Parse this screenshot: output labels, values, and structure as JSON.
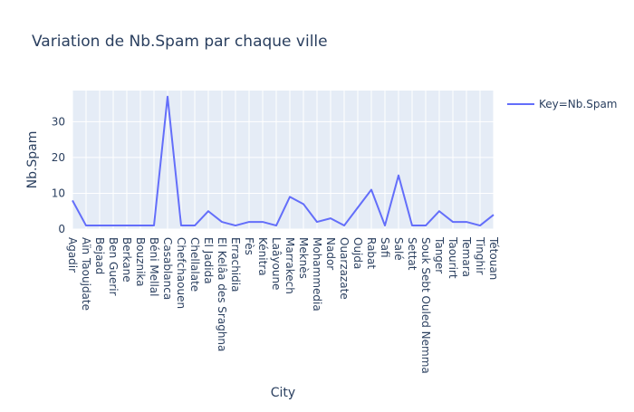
{
  "chart_data": {
    "type": "line",
    "title": "Variation de Nb.Spam par chaque ville",
    "xlabel": "City",
    "ylabel": "Nb.Spam",
    "ylim": [
      0,
      38.7
    ],
    "yticks": [
      0,
      10,
      20,
      30
    ],
    "grid": true,
    "legend_position": "top-right",
    "legend_title": "Key=Nb.Spam",
    "line_color": "#636efa",
    "plot_bgcolor": "#e5ecf6",
    "categories": [
      "Agadir",
      "Aïn Taoujdate",
      "Bejaad",
      "Ben Guerir",
      "Berkane",
      "Bouznika",
      "Béni Mellal",
      "Casablanca",
      "Chefchaouen",
      "Chellalate",
      "El Jadida",
      "El Kelâa des Sraghna",
      "Errachidia",
      "Fès",
      "Kénitra",
      "Laâyoune",
      "Marrakech",
      "Meknès",
      "Mohammedia",
      "Nador",
      "Ouarzazate",
      "Oujda",
      "Rabat",
      "Safi",
      "Salé",
      "Settat",
      "Souk Sebt Ouled Nemma",
      "Tanger",
      "Taourirt",
      "Temara",
      "Tinghir",
      "Tétouan"
    ],
    "series": [
      {
        "name": "Nb.Spam",
        "values": [
          8,
          1,
          1,
          1,
          1,
          1,
          1,
          37,
          1,
          1,
          5,
          2,
          1,
          2,
          2,
          1,
          9,
          7,
          2,
          3,
          1,
          6,
          11,
          1,
          15,
          1,
          1,
          5,
          2,
          2,
          1,
          4
        ]
      }
    ]
  }
}
